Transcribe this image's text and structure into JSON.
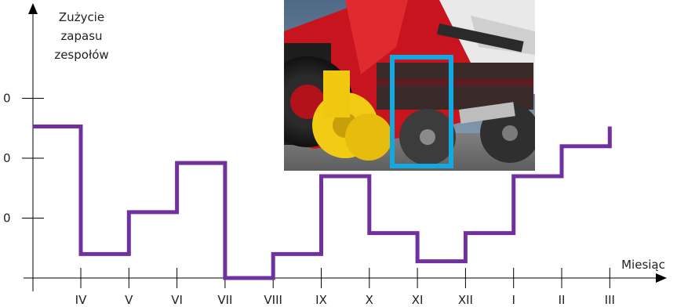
{
  "chart_data": {
    "type": "line",
    "step": true,
    "xlabel": "Miesiąc",
    "ylabel_lines": [
      "Zużycie",
      "zapasu",
      "zespołów"
    ],
    "categories": [
      "IV",
      "V",
      "VI",
      "VII",
      "VIII",
      "IX",
      "X",
      "XI",
      "XII",
      "I",
      "II",
      "III"
    ],
    "yticks": [
      1,
      2,
      3
    ],
    "ytick_labels": [
      "0",
      "0",
      "0"
    ],
    "ylim": [
      0,
      4
    ],
    "grid": false,
    "series": [
      {
        "color": "#7030a0",
        "initial": 2.53,
        "values": [
          0.4,
          1.1,
          1.92,
          0.0,
          0.4,
          1.7,
          0.75,
          0.28,
          0.75,
          1.7,
          2.2,
          2.53
        ]
      }
    ]
  },
  "photo": {
    "description_icon": "seed-drill-photo",
    "highlight_color": "#12a8e0"
  }
}
